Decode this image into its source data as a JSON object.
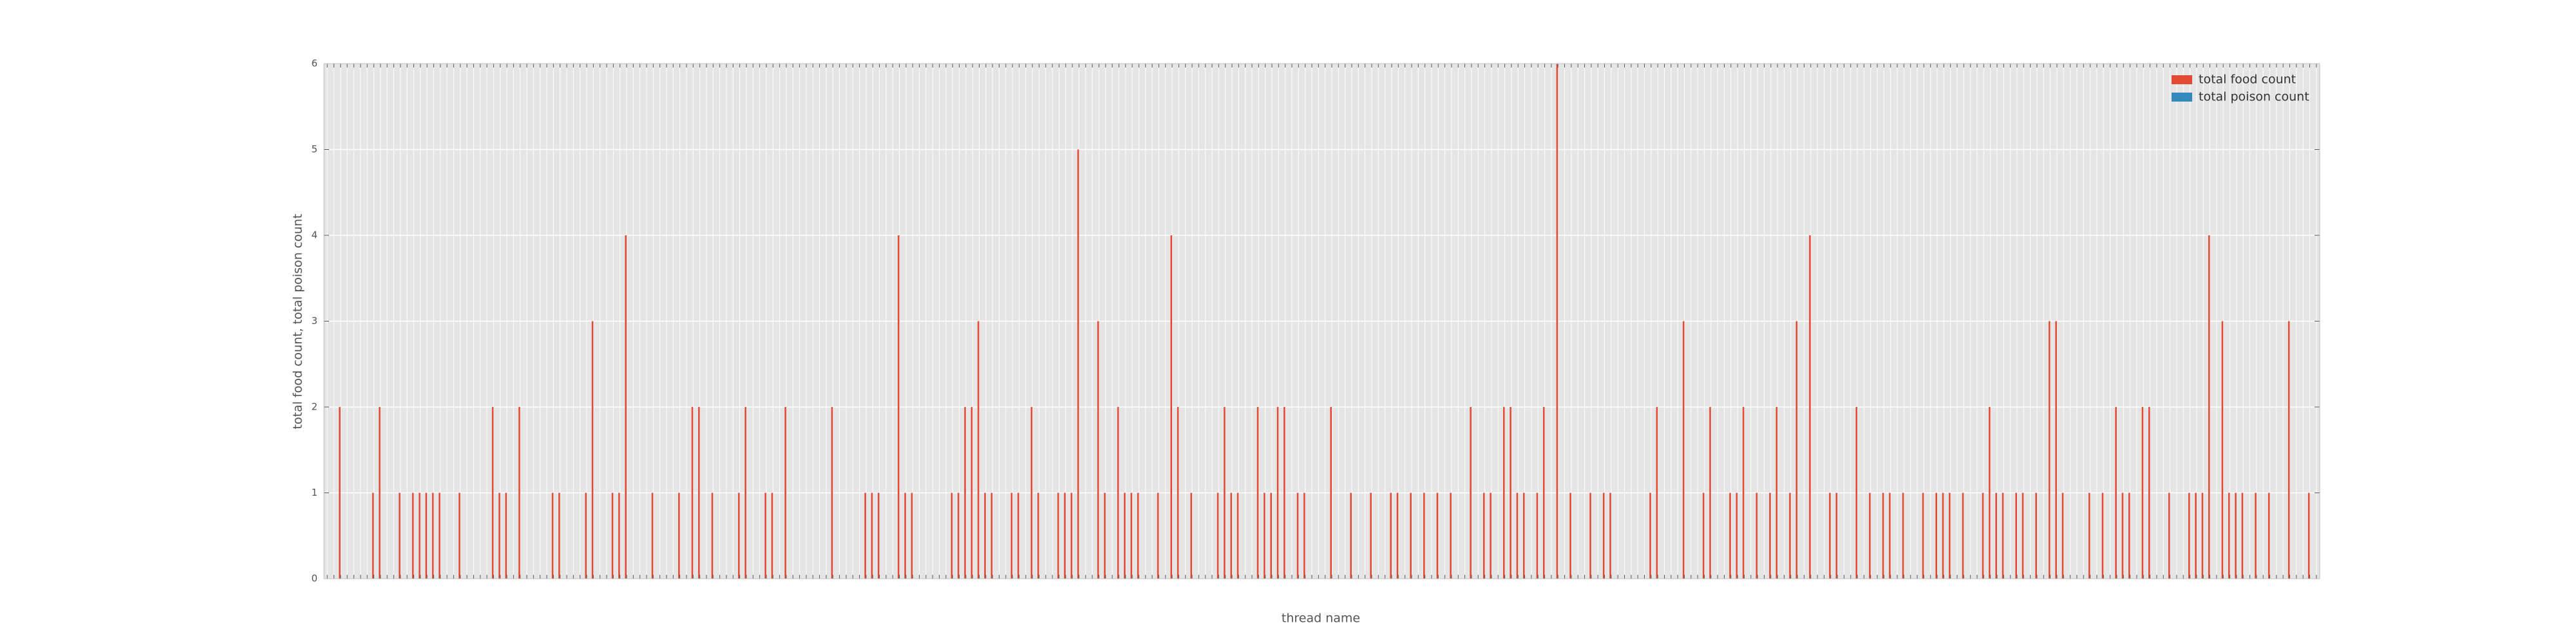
{
  "chart_data": {
    "type": "bar",
    "xlabel": "thread name",
    "ylabel": "total food count, total poison count",
    "legend": "upper right",
    "grid": true,
    "ylim": [
      0,
      6
    ],
    "yticks": [
      0,
      1,
      2,
      3,
      4,
      5,
      6
    ],
    "categories": [
      null,
      null,
      null,
      null,
      null,
      null,
      null,
      null,
      null,
      null,
      null,
      null,
      null,
      null,
      null,
      null,
      null,
      null,
      null,
      null,
      null,
      null,
      null,
      null,
      null,
      null,
      null,
      null,
      null,
      null,
      null,
      null,
      null,
      null,
      null,
      null,
      null,
      null,
      null,
      null,
      null,
      null,
      null,
      null,
      null,
      null,
      null,
      null,
      null,
      null,
      null,
      null,
      null,
      null,
      null,
      null,
      null,
      null,
      null,
      null,
      null,
      null,
      null,
      null,
      null,
      null,
      null,
      null,
      null,
      null,
      null,
      null,
      null,
      null,
      null,
      null,
      null,
      null,
      null,
      null,
      null,
      null,
      null,
      null,
      null,
      null,
      null,
      null,
      null,
      null,
      null,
      null,
      null,
      null,
      null,
      null,
      null,
      null,
      null,
      null,
      null,
      null,
      null,
      null,
      null,
      null,
      null,
      null,
      null,
      null,
      null,
      null,
      null,
      null,
      null,
      null,
      null,
      null,
      null,
      null,
      null,
      null,
      null,
      null,
      null,
      null,
      null,
      null,
      null,
      null,
      null,
      null,
      null,
      null,
      null,
      null,
      null,
      null,
      null,
      null,
      null,
      null,
      null,
      null,
      null,
      null,
      null,
      null,
      null,
      null,
      null,
      null,
      null,
      null,
      null,
      null,
      null,
      null,
      null,
      null,
      null,
      null,
      null,
      null,
      null,
      null,
      null,
      null,
      null,
      null,
      null,
      null,
      null,
      null,
      null,
      null,
      null,
      null,
      null,
      null,
      null,
      null,
      null,
      null,
      null,
      null,
      null,
      null,
      null,
      null,
      null,
      null,
      null,
      null,
      null,
      null,
      null,
      null,
      null,
      null,
      null,
      null,
      null,
      null,
      null,
      null,
      null,
      null,
      null,
      null,
      null,
      null,
      null,
      null,
      null,
      null,
      null,
      null,
      null,
      null,
      null,
      null,
      null,
      null,
      null,
      null,
      null,
      null,
      null,
      null,
      null,
      null,
      null,
      null,
      null,
      null,
      null,
      null,
      null,
      null,
      null,
      null,
      null,
      null,
      null,
      null,
      null,
      null,
      null,
      null,
      null,
      null,
      null,
      null,
      null,
      null,
      null,
      null,
      null,
      null,
      null,
      null,
      null,
      null,
      null,
      null,
      null,
      null,
      null,
      null,
      null,
      null,
      null,
      null,
      null,
      null,
      null,
      null,
      null,
      null,
      null,
      null,
      null,
      null,
      null,
      null,
      null,
      null,
      null,
      null,
      null,
      null,
      null,
      null,
      null,
      null,
      null,
      null,
      null,
      null
    ],
    "series": [
      {
        "name": "total food count",
        "color": "#e24a33",
        "values": [
          0,
          0,
          2,
          0,
          0,
          0,
          0,
          1,
          2,
          0,
          0,
          1,
          0,
          1,
          1,
          1,
          1,
          1,
          0,
          0,
          1,
          0,
          0,
          0,
          0,
          2,
          1,
          1,
          0,
          2,
          0,
          0,
          0,
          0,
          1,
          1,
          0,
          0,
          0,
          1,
          3,
          0,
          0,
          1,
          1,
          4,
          0,
          0,
          0,
          1,
          0,
          0,
          0,
          1,
          0,
          2,
          2,
          0,
          1,
          0,
          0,
          0,
          1,
          2,
          0,
          0,
          1,
          1,
          0,
          2,
          0,
          0,
          0,
          0,
          0,
          0,
          2,
          0,
          0,
          0,
          0,
          1,
          1,
          1,
          0,
          0,
          4,
          1,
          1,
          0,
          0,
          0,
          0,
          0,
          1,
          1,
          2,
          2,
          3,
          1,
          1,
          0,
          0,
          1,
          1,
          0,
          2,
          1,
          0,
          0,
          1,
          1,
          1,
          5,
          0,
          0,
          3,
          1,
          0,
          2,
          1,
          1,
          1,
          0,
          0,
          1,
          0,
          4,
          2,
          0,
          1,
          0,
          0,
          0,
          1,
          2,
          1,
          1,
          0,
          0,
          2,
          1,
          1,
          2,
          2,
          0,
          1,
          1,
          0,
          0,
          0,
          2,
          0,
          0,
          1,
          0,
          0,
          1,
          0,
          0,
          1,
          1,
          0,
          1,
          0,
          1,
          0,
          1,
          0,
          1,
          0,
          0,
          2,
          0,
          1,
          1,
          0,
          2,
          2,
          1,
          1,
          0,
          1,
          2,
          0,
          6,
          0,
          1,
          0,
          0,
          1,
          0,
          1,
          1,
          0,
          0,
          0,
          0,
          0,
          1,
          2,
          0,
          0,
          0,
          3,
          0,
          0,
          1,
          2,
          0,
          0,
          1,
          1,
          2,
          0,
          1,
          0,
          1,
          2,
          0,
          1,
          3,
          0,
          4,
          0,
          0,
          1,
          1,
          0,
          0,
          2,
          0,
          1,
          0,
          1,
          1,
          0,
          1,
          0,
          0,
          1,
          0,
          1,
          1,
          1,
          0,
          1,
          0,
          0,
          1,
          2,
          1,
          1,
          0,
          1,
          1,
          0,
          1,
          0,
          3,
          3,
          1,
          0,
          0,
          0,
          1,
          0,
          1,
          0,
          2,
          1,
          1,
          0,
          2,
          2,
          0,
          0,
          1,
          0,
          0,
          1,
          1,
          1,
          4,
          0,
          3,
          1,
          1,
          1,
          0,
          1,
          0,
          1,
          0,
          0,
          3,
          0,
          0,
          1,
          0
        ]
      },
      {
        "name": "total poison count",
        "color": "#348abd",
        "values": [
          0,
          0,
          0,
          0,
          0,
          0,
          0,
          0,
          0,
          0,
          0,
          0,
          0,
          0,
          0,
          0,
          0,
          0,
          0,
          0,
          0,
          0,
          0,
          0,
          0,
          0,
          0,
          0,
          0,
          0,
          0,
          0,
          0,
          0,
          0,
          0,
          0,
          0,
          0,
          0,
          0,
          0,
          0,
          0,
          0,
          0,
          0,
          0,
          0,
          0,
          0,
          0,
          0,
          0,
          0,
          0,
          0,
          0,
          0,
          0,
          0,
          0,
          0,
          0,
          0,
          0,
          0,
          0,
          0,
          0,
          0,
          0,
          0,
          0,
          0,
          0,
          0,
          0,
          0,
          0,
          0,
          0,
          0,
          0,
          0,
          0,
          0,
          0,
          0,
          0,
          0,
          0,
          0,
          0,
          0,
          0,
          0,
          0,
          0,
          0,
          0,
          0,
          0,
          0,
          0,
          0,
          0,
          0,
          0,
          0,
          0,
          0,
          0,
          0,
          0,
          0,
          0,
          0,
          0,
          0,
          0,
          0,
          0,
          0,
          0,
          0,
          0,
          0,
          0,
          0,
          0,
          0,
          0,
          0,
          0,
          0,
          0,
          0,
          0,
          0,
          0,
          0,
          0,
          0,
          0,
          0,
          0,
          0,
          0,
          0,
          0,
          0,
          0,
          0,
          0,
          0,
          0,
          0,
          0,
          0,
          0,
          0,
          0,
          0,
          0,
          0,
          0,
          0,
          0,
          0,
          0,
          0,
          0,
          0,
          0,
          0,
          0,
          0,
          0,
          0,
          0,
          0,
          0,
          0,
          0,
          0,
          0,
          0,
          0,
          0,
          0,
          0,
          0,
          0,
          0,
          0,
          0,
          0,
          0,
          0,
          0,
          0,
          0,
          0,
          0,
          0,
          0,
          0,
          0,
          0,
          0,
          0,
          0,
          0,
          0,
          0,
          0,
          0,
          0,
          0,
          0,
          0,
          0,
          0,
          0,
          0,
          0,
          0,
          0,
          0,
          0,
          0,
          0,
          0,
          0,
          0,
          0,
          0,
          0,
          0,
          0,
          0,
          0,
          0,
          0,
          0,
          0,
          0,
          0,
          0,
          0,
          0,
          0,
          0,
          0,
          0,
          0,
          0,
          0,
          0,
          0,
          0,
          0,
          0,
          0,
          0,
          0,
          0,
          0,
          0,
          0,
          0,
          0,
          0,
          0,
          0,
          0,
          0,
          0,
          0,
          0,
          0,
          0,
          0,
          0,
          0,
          0,
          0,
          0,
          0,
          0,
          0,
          0,
          0,
          0,
          0,
          0,
          0,
          0,
          0
        ]
      }
    ]
  }
}
